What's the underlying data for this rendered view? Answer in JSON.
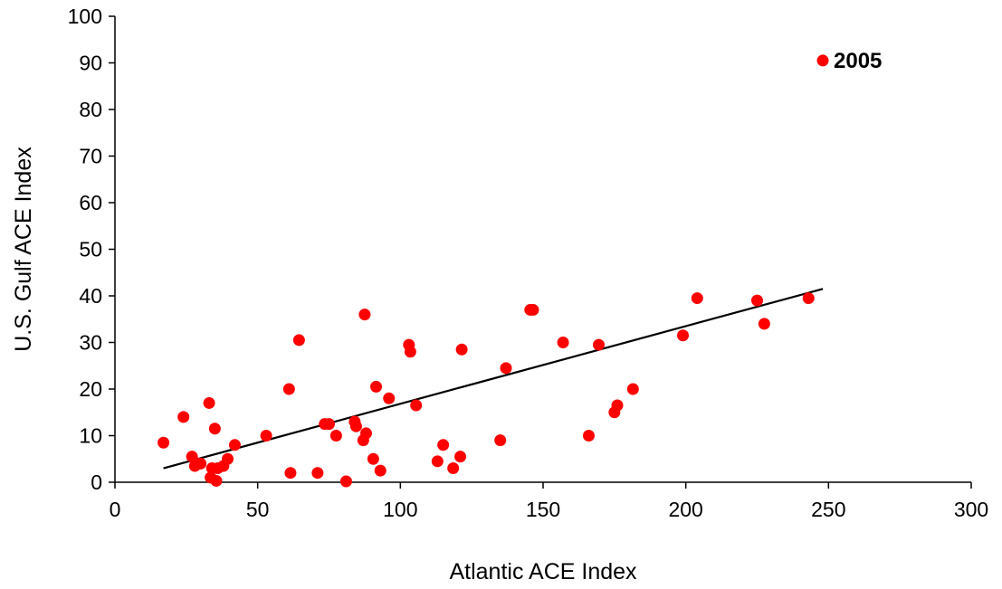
{
  "chart_data": {
    "type": "scatter",
    "xlabel": "Atlantic ACE Index",
    "ylabel": "U.S. Gulf ACE Index",
    "xlim": [
      0,
      300
    ],
    "ylim": [
      0,
      100
    ],
    "xticks": [
      0,
      50,
      100,
      150,
      200,
      250,
      300
    ],
    "yticks": [
      0,
      10,
      20,
      30,
      40,
      50,
      60,
      70,
      80,
      90,
      100
    ],
    "grid": false,
    "legend": "none",
    "marker_color": "#ff0000",
    "trendline_color": "#000000",
    "points": [
      [
        17,
        8.5
      ],
      [
        24,
        14
      ],
      [
        27,
        5.5
      ],
      [
        28,
        3.5
      ],
      [
        30,
        4
      ],
      [
        33,
        17
      ],
      [
        33.5,
        1
      ],
      [
        34,
        3
      ],
      [
        35,
        11.5
      ],
      [
        35.5,
        0.3
      ],
      [
        36,
        3
      ],
      [
        38,
        3.5
      ],
      [
        39.5,
        5
      ],
      [
        42,
        8
      ],
      [
        53,
        10
      ],
      [
        61,
        20
      ],
      [
        61.5,
        2
      ],
      [
        64.5,
        30.5
      ],
      [
        71,
        2
      ],
      [
        73.5,
        12.5
      ],
      [
        75,
        12.5
      ],
      [
        77.5,
        10
      ],
      [
        81,
        0.2
      ],
      [
        84,
        13
      ],
      [
        84.5,
        12
      ],
      [
        87,
        9
      ],
      [
        87.5,
        36
      ],
      [
        88,
        10.5
      ],
      [
        90.5,
        5
      ],
      [
        91.5,
        20.5
      ],
      [
        93,
        2.5
      ],
      [
        96,
        18
      ],
      [
        103,
        29.5
      ],
      [
        103.5,
        28
      ],
      [
        105.5,
        16.5
      ],
      [
        113,
        4.5
      ],
      [
        115,
        8
      ],
      [
        118.5,
        3
      ],
      [
        121,
        5.5
      ],
      [
        121.5,
        28.5
      ],
      [
        135,
        9
      ],
      [
        137,
        24.5
      ],
      [
        145.5,
        37
      ],
      [
        146.5,
        37
      ],
      [
        157,
        30
      ],
      [
        166,
        10
      ],
      [
        169.5,
        29.5
      ],
      [
        175,
        15
      ],
      [
        176,
        16.5
      ],
      [
        181.5,
        20
      ],
      [
        199,
        31.5
      ],
      [
        204,
        39.5
      ],
      [
        225,
        39
      ],
      [
        227.5,
        34
      ],
      [
        243,
        39.5
      ]
    ],
    "trendline": {
      "x": [
        17,
        248
      ],
      "y": [
        3,
        41.5
      ]
    },
    "annotations": [
      {
        "label": "2005",
        "x": 248,
        "y": 90.5
      }
    ]
  }
}
